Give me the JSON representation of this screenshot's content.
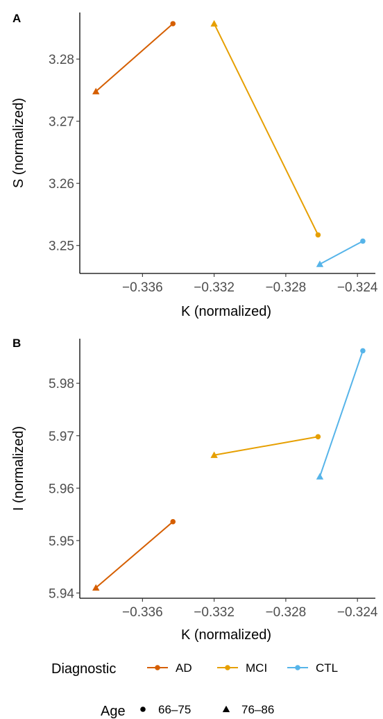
{
  "chart_data": [
    {
      "type": "line",
      "panel_label": "A",
      "xlabel": "K (normalized)",
      "ylabel": "S (normalized)",
      "xlim": [
        -0.3395,
        -0.323
      ],
      "ylim": [
        3.2455,
        3.2875
      ],
      "xticks": [
        -0.336,
        -0.332,
        -0.328,
        -0.324
      ],
      "xtick_labels": [
        "−0.336",
        "−0.332",
        "−0.328",
        "−0.324"
      ],
      "yticks": [
        3.25,
        3.26,
        3.27,
        3.28
      ],
      "ytick_labels": [
        "3.25",
        "3.26",
        "3.27",
        "3.28"
      ],
      "series": [
        {
          "name": "AD",
          "color": "#d55e00",
          "points": [
            {
              "x": -0.3386,
              "y": 3.2748,
              "age": "76–86"
            },
            {
              "x": -0.3343,
              "y": 3.2857,
              "age": "66–75"
            }
          ]
        },
        {
          "name": "MCI",
          "color": "#e69f00",
          "points": [
            {
              "x": -0.332,
              "y": 3.2857,
              "age": "76–86"
            },
            {
              "x": -0.3262,
              "y": 3.2517,
              "age": "66–75"
            }
          ]
        },
        {
          "name": "CTL",
          "color": "#56b4e9",
          "points": [
            {
              "x": -0.3261,
              "y": 3.247,
              "age": "76–86"
            },
            {
              "x": -0.3237,
              "y": 3.2507,
              "age": "66–75"
            }
          ]
        }
      ]
    },
    {
      "type": "line",
      "panel_label": "B",
      "xlabel": "K (normalized)",
      "ylabel": "I (normalized)",
      "xlim": [
        -0.3395,
        -0.323
      ],
      "ylim": [
        5.939,
        5.9885
      ],
      "xticks": [
        -0.336,
        -0.332,
        -0.328,
        -0.324
      ],
      "xtick_labels": [
        "−0.336",
        "−0.332",
        "−0.328",
        "−0.324"
      ],
      "yticks": [
        5.94,
        5.95,
        5.96,
        5.97,
        5.98
      ],
      "ytick_labels": [
        "5.94",
        "5.95",
        "5.96",
        "5.97",
        "5.98"
      ],
      "series": [
        {
          "name": "AD",
          "color": "#d55e00",
          "points": [
            {
              "x": -0.3386,
              "y": 5.941,
              "age": "76–86"
            },
            {
              "x": -0.3343,
              "y": 5.9536,
              "age": "66–75"
            }
          ]
        },
        {
          "name": "MCI",
          "color": "#e69f00",
          "points": [
            {
              "x": -0.332,
              "y": 5.9663,
              "age": "76–86"
            },
            {
              "x": -0.3262,
              "y": 5.9698,
              "age": "66–75"
            }
          ]
        },
        {
          "name": "CTL",
          "color": "#56b4e9",
          "points": [
            {
              "x": -0.3261,
              "y": 5.9622,
              "age": "76–86"
            },
            {
              "x": -0.3237,
              "y": 5.9862,
              "age": "66–75"
            }
          ]
        }
      ]
    }
  ],
  "legend": {
    "position": "bottom",
    "diagnostic": {
      "title": "Diagnostic",
      "items": [
        {
          "label": "AD",
          "color": "#d55e00"
        },
        {
          "label": "MCI",
          "color": "#e69f00"
        },
        {
          "label": "CTL",
          "color": "#56b4e9"
        }
      ]
    },
    "age": {
      "title": "Age",
      "items": [
        {
          "label": "66–75",
          "shape": "circle"
        },
        {
          "label": "76–86",
          "shape": "triangle"
        }
      ]
    }
  }
}
